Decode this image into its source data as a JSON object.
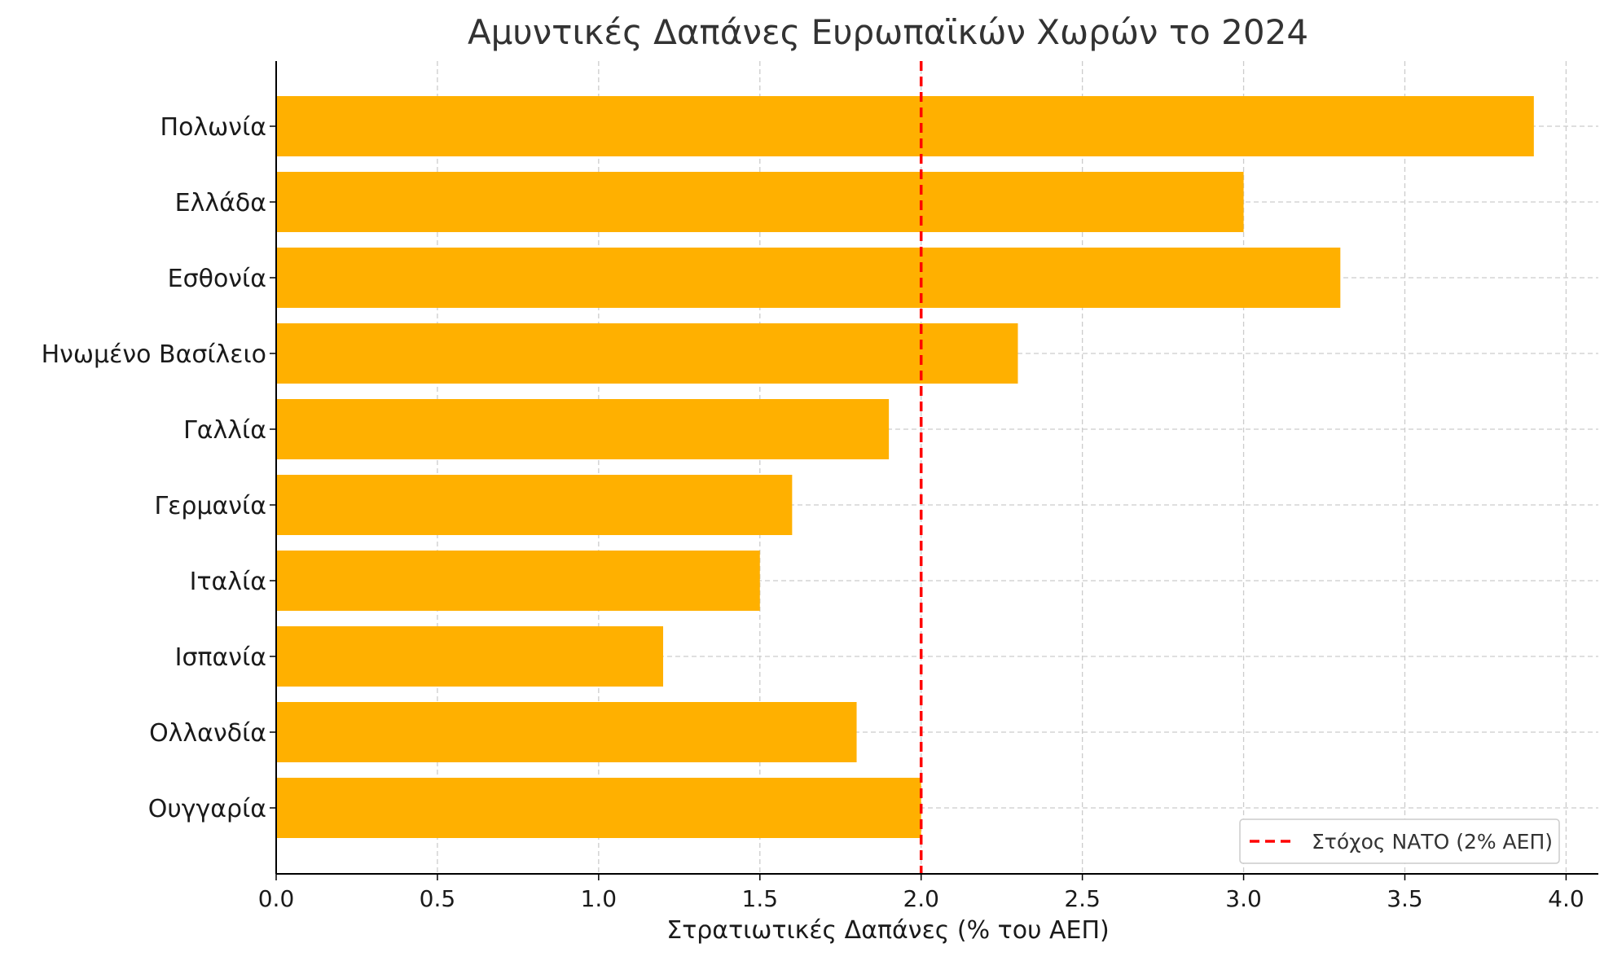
{
  "chart_data": {
    "type": "bar",
    "orientation": "horizontal",
    "title": "Αμυντικές Δαπάνες Ευρωπαϊκών Χωρών το 2024",
    "xlabel": "Στρατιωτικές Δαπάνες (% του ΑΕΠ)",
    "ylabel": "",
    "categories": [
      "Πολωνία",
      "Ελλάδα",
      "Εσθονία",
      "Ηνωμένο Βασίλειο",
      "Γαλλία",
      "Γερμανία",
      "Ιταλία",
      "Ισπανία",
      "Ολλανδία",
      "Ουγγαρία"
    ],
    "values": [
      3.9,
      3.0,
      3.3,
      2.3,
      1.9,
      1.6,
      1.5,
      1.2,
      1.8,
      2.0
    ],
    "xlim": [
      0,
      4.1
    ],
    "xticks": [
      0.0,
      0.5,
      1.0,
      1.5,
      2.0,
      2.5,
      3.0,
      3.5,
      4.0
    ],
    "xtick_labels": [
      "0.0",
      "0.5",
      "1.0",
      "1.5",
      "2.0",
      "2.5",
      "3.0",
      "3.5",
      "4.0"
    ],
    "grid": true,
    "reference_line": {
      "value": 2.0,
      "label": "Στόχος ΝΑΤΟ (2% ΑΕΠ)",
      "color": "#ff0000",
      "style": "dashed"
    },
    "legend_position": "bottom-right",
    "colors": {
      "bar": "#ffb000",
      "grid": "#cccccc",
      "axis": "#000000"
    }
  }
}
